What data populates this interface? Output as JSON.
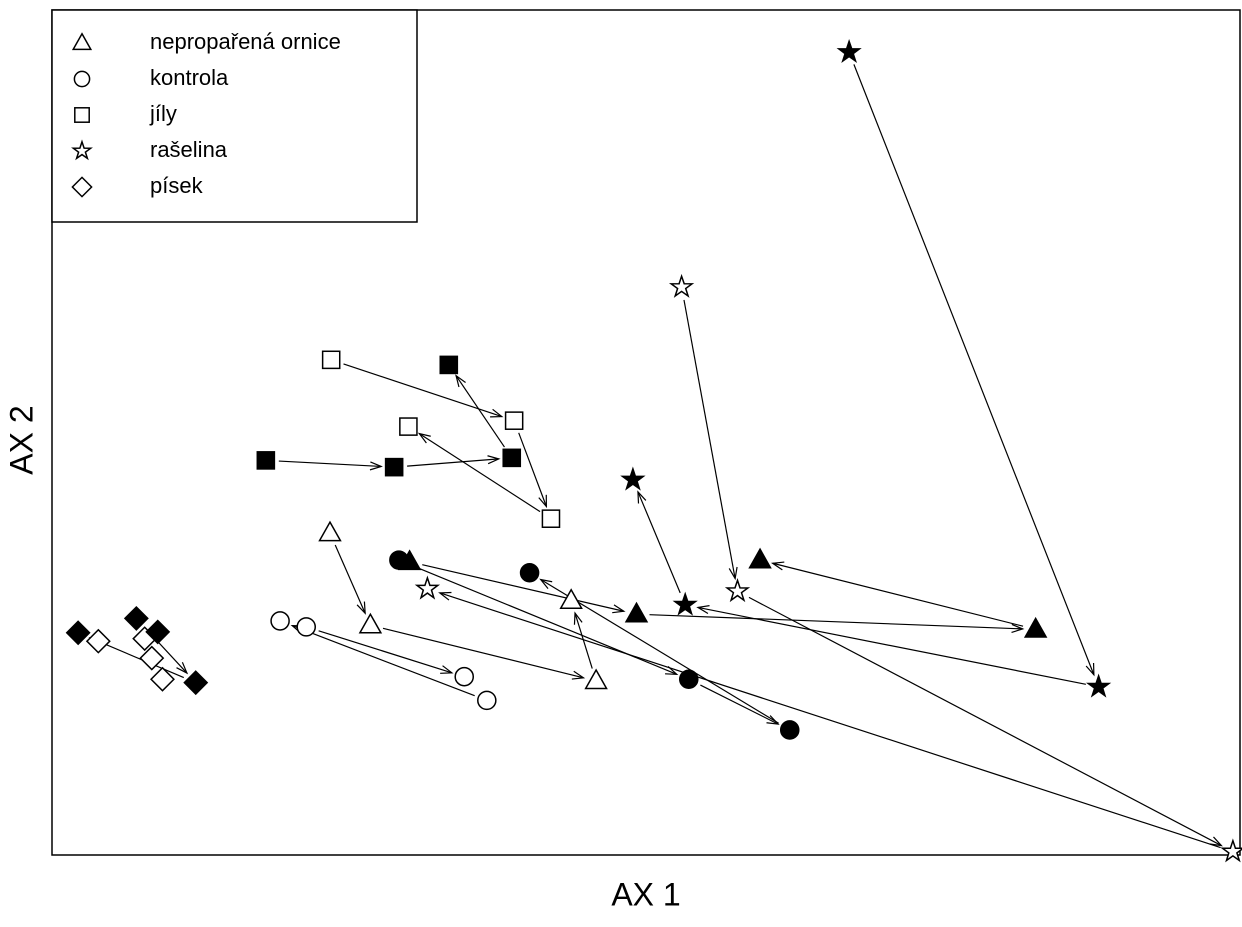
{
  "chart_data": {
    "type": "scatter",
    "x_label": "AX 1",
    "y_label": "AX 2",
    "xlim": [
      0,
      100
    ],
    "ylim": [
      0,
      100
    ],
    "legend": "top-left",
    "series": [
      {
        "name": "nepropařená ornice",
        "marker": "triangle",
        "x": [
          23.4,
          26.8,
          43.7,
          45.8,
          30.1,
          49.2,
          59.6,
          82.8
        ],
        "y": [
          38.1,
          27.2,
          30.1,
          20.6,
          34.7,
          28.5,
          34.9,
          26.7
        ],
        "filled": [
          false,
          false,
          false,
          false,
          true,
          true,
          true,
          true
        ],
        "arrows": [
          [
            0,
            1
          ],
          [
            1,
            3
          ],
          [
            3,
            2
          ],
          [
            7,
            6
          ],
          [
            5,
            7
          ],
          [
            4,
            5
          ]
        ]
      },
      {
        "name": "kontrola",
        "marker": "circle",
        "x": [
          19.2,
          21.4,
          34.7,
          36.6,
          29.2,
          40.2,
          53.6,
          62.1
        ],
        "y": [
          27.7,
          27.0,
          21.1,
          18.3,
          34.9,
          33.4,
          20.8,
          14.8
        ],
        "filled": [
          false,
          false,
          false,
          false,
          true,
          true,
          true,
          true
        ],
        "arrows": [
          [
            1,
            2
          ],
          [
            3,
            0
          ],
          [
            4,
            6
          ],
          [
            6,
            7
          ],
          [
            7,
            5
          ]
        ]
      },
      {
        "name": "jíly",
        "marker": "square",
        "x": [
          23.5,
          30.0,
          38.9,
          42.0,
          18.0,
          28.8,
          38.7,
          33.4
        ],
        "y": [
          58.6,
          50.7,
          51.4,
          39.8,
          46.7,
          45.9,
          47.0,
          58.0
        ],
        "filled": [
          false,
          false,
          false,
          false,
          true,
          true,
          true,
          true
        ],
        "arrows": [
          [
            0,
            2
          ],
          [
            2,
            3
          ],
          [
            3,
            1
          ],
          [
            4,
            5
          ],
          [
            5,
            6
          ],
          [
            6,
            7
          ]
        ]
      },
      {
        "name": "rašelina",
        "marker": "star",
        "x": [
          53.0,
          57.7,
          31.6,
          99.4,
          67.1,
          48.9,
          53.3,
          88.1
        ],
        "y": [
          67.2,
          31.2,
          31.5,
          0.4,
          95.0,
          44.4,
          29.6,
          19.9
        ],
        "filled": [
          false,
          false,
          false,
          false,
          true,
          true,
          true,
          true
        ],
        "arrows": [
          [
            0,
            1
          ],
          [
            1,
            3
          ],
          [
            3,
            2
          ],
          [
            4,
            7
          ],
          [
            7,
            6
          ],
          [
            6,
            5
          ]
        ]
      },
      {
        "name": "písek",
        "marker": "diamond",
        "x": [
          3.9,
          7.8,
          8.4,
          9.3,
          2.2,
          7.1,
          8.9,
          12.1
        ],
        "y": [
          25.3,
          25.6,
          23.3,
          20.8,
          26.3,
          28.0,
          26.4,
          20.4
        ],
        "filled": [
          false,
          false,
          false,
          false,
          true,
          true,
          true,
          true
        ],
        "arrows": [
          [
            5,
            7
          ],
          [
            7,
            4
          ]
        ]
      }
    ]
  }
}
